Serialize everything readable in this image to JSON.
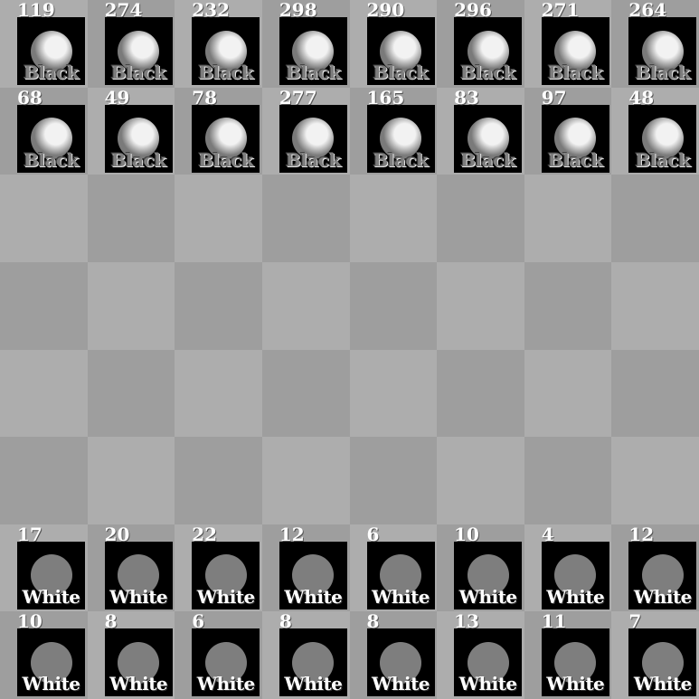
{
  "board": {
    "rows": 8,
    "cols": 8
  },
  "pieces": [
    {
      "row": 0,
      "col": 0,
      "label": "Black",
      "count": "119",
      "side": "black"
    },
    {
      "row": 0,
      "col": 1,
      "label": "Black",
      "count": "274",
      "side": "black"
    },
    {
      "row": 0,
      "col": 2,
      "label": "Black",
      "count": "232",
      "side": "black"
    },
    {
      "row": 0,
      "col": 3,
      "label": "Black",
      "count": "298",
      "side": "black"
    },
    {
      "row": 0,
      "col": 4,
      "label": "Black",
      "count": "290",
      "side": "black"
    },
    {
      "row": 0,
      "col": 5,
      "label": "Black",
      "count": "296",
      "side": "black"
    },
    {
      "row": 0,
      "col": 6,
      "label": "Black",
      "count": "271",
      "side": "black"
    },
    {
      "row": 0,
      "col": 7,
      "label": "Black",
      "count": "264",
      "side": "black"
    },
    {
      "row": 1,
      "col": 0,
      "label": "Black",
      "count": "68",
      "side": "black"
    },
    {
      "row": 1,
      "col": 1,
      "label": "Black",
      "count": "49",
      "side": "black"
    },
    {
      "row": 1,
      "col": 2,
      "label": "Black",
      "count": "78",
      "side": "black"
    },
    {
      "row": 1,
      "col": 3,
      "label": "Black",
      "count": "277",
      "side": "black"
    },
    {
      "row": 1,
      "col": 4,
      "label": "Black",
      "count": "165",
      "side": "black"
    },
    {
      "row": 1,
      "col": 5,
      "label": "Black",
      "count": "83",
      "side": "black"
    },
    {
      "row": 1,
      "col": 6,
      "label": "Black",
      "count": "97",
      "side": "black"
    },
    {
      "row": 1,
      "col": 7,
      "label": "Black",
      "count": "48",
      "side": "black"
    },
    {
      "row": 6,
      "col": 0,
      "label": "White",
      "count": "17",
      "side": "white"
    },
    {
      "row": 6,
      "col": 1,
      "label": "White",
      "count": "20",
      "side": "white"
    },
    {
      "row": 6,
      "col": 2,
      "label": "White",
      "count": "22",
      "side": "white"
    },
    {
      "row": 6,
      "col": 3,
      "label": "White",
      "count": "12",
      "side": "white"
    },
    {
      "row": 6,
      "col": 4,
      "label": "White",
      "count": "6",
      "side": "white"
    },
    {
      "row": 6,
      "col": 5,
      "label": "White",
      "count": "10",
      "side": "white"
    },
    {
      "row": 6,
      "col": 6,
      "label": "White",
      "count": "4",
      "side": "white"
    },
    {
      "row": 6,
      "col": 7,
      "label": "White",
      "count": "12",
      "side": "white"
    },
    {
      "row": 7,
      "col": 0,
      "label": "White",
      "count": "10",
      "side": "white"
    },
    {
      "row": 7,
      "col": 1,
      "label": "White",
      "count": "8",
      "side": "white"
    },
    {
      "row": 7,
      "col": 2,
      "label": "White",
      "count": "6",
      "side": "white"
    },
    {
      "row": 7,
      "col": 3,
      "label": "White",
      "count": "8",
      "side": "white"
    },
    {
      "row": 7,
      "col": 4,
      "label": "White",
      "count": "8",
      "side": "white"
    },
    {
      "row": 7,
      "col": 5,
      "label": "White",
      "count": "13",
      "side": "white"
    },
    {
      "row": 7,
      "col": 6,
      "label": "White",
      "count": "11",
      "side": "white"
    },
    {
      "row": 7,
      "col": 7,
      "label": "White",
      "count": "7",
      "side": "white"
    }
  ],
  "colors": {
    "light_square": "#adadad",
    "dark_square": "#9e9e9e",
    "tile_background": "#000000",
    "count_text": "#ffffff"
  }
}
